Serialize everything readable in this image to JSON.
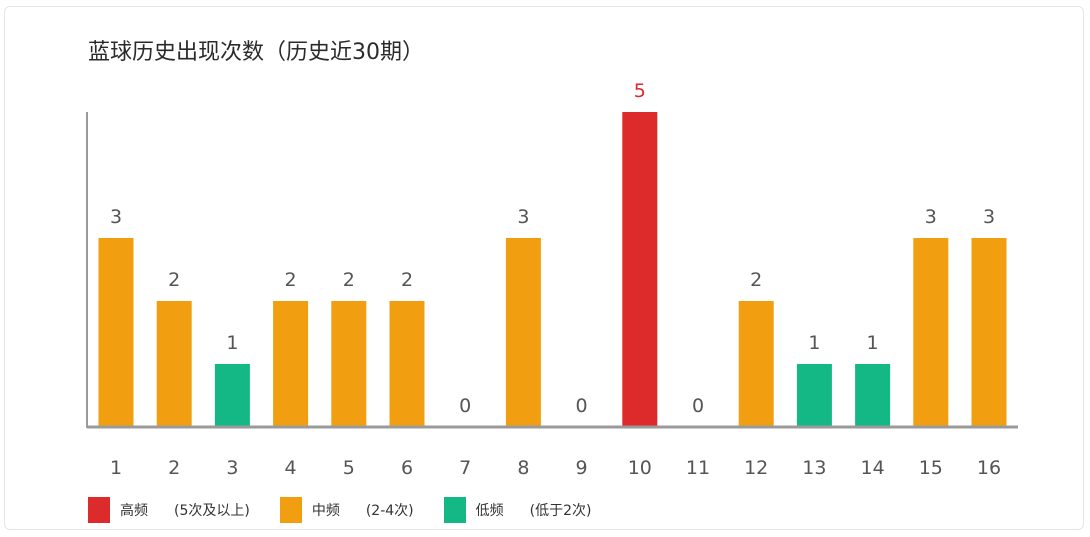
{
  "title": "蓝球历史出现次数（历史近30期）",
  "chart_data": {
    "type": "bar",
    "categories": [
      "1",
      "2",
      "3",
      "4",
      "5",
      "6",
      "7",
      "8",
      "9",
      "10",
      "11",
      "12",
      "13",
      "14",
      "15",
      "16"
    ],
    "values": [
      3,
      2,
      1,
      2,
      2,
      2,
      0,
      3,
      0,
      5,
      0,
      2,
      1,
      1,
      3,
      3
    ],
    "ylim": [
      0,
      5
    ],
    "grid": false,
    "legend_position": "bottom-left",
    "colors": {
      "high": "#dd2a2a",
      "mid": "#f19f11",
      "low": "#14b884",
      "axis": "#9a9a9a",
      "label": "#555555",
      "label_high": "#dd2a2a"
    },
    "legend": [
      {
        "key": "high",
        "name": "高频",
        "desc": "(5次及以上)"
      },
      {
        "key": "mid",
        "name": "中频",
        "desc": "(2-4次)"
      },
      {
        "key": "low",
        "name": "低频",
        "desc": "(低于2次)"
      }
    ]
  }
}
